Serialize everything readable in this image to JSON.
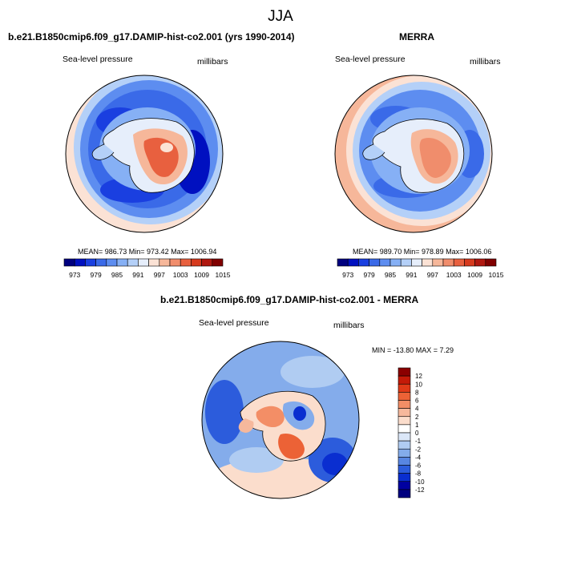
{
  "page_title": "JJA",
  "panels": [
    {
      "title": "b.e21.B1850cmip6.f09_g17.DAMIP-hist-co2.001 (yrs 1990-2014)",
      "left_label": "Sea-level pressure",
      "right_label": "millibars",
      "stats": "MEAN= 986.73   Min= 973.42   Max= 1006.94"
    },
    {
      "title": "MERRA",
      "left_label": "Sea-level pressure",
      "right_label": "millibars",
      "stats": "MEAN= 989.70   Min= 978.89   Max= 1006.06"
    },
    {
      "title": "b.e21.B1850cmip6.f09_g17.DAMIP-hist-co2.001 - MERRA",
      "left_label": "Sea-level pressure",
      "right_label": "millibars",
      "stats": "MIN = -13.80 MAX =   7.29"
    }
  ],
  "colorbar_top": {
    "labels": [
      "973",
      "979",
      "985",
      "991",
      "997",
      "1003",
      "1009",
      "1015"
    ],
    "colors": [
      "#00007f",
      "#0010c0",
      "#1a3fe0",
      "#3a6ae8",
      "#5d8df0",
      "#86b0f5",
      "#b4d0f8",
      "#e6eefb",
      "#fbe2d5",
      "#f6b79a",
      "#f08d6c",
      "#e8603f",
      "#d63a1e",
      "#b01810",
      "#800000"
    ]
  },
  "colorbar_diff": {
    "labels": [
      "12",
      "10",
      "8",
      "6",
      "4",
      "2",
      "1",
      "0",
      "-1",
      "-2",
      "-4",
      "-6",
      "-8",
      "-10",
      "-12"
    ],
    "colors": [
      "#8b0000",
      "#c41a08",
      "#e03a18",
      "#ec6236",
      "#f38e66",
      "#f6b89c",
      "#fbddcc",
      "#ffffff",
      "#dbe7f8",
      "#b0ccf2",
      "#84aceb",
      "#5886e2",
      "#2c5cdc",
      "#0a2ed0",
      "#0000a0",
      "#00007f"
    ]
  }
}
